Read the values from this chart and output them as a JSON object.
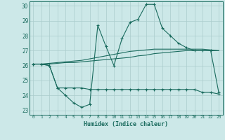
{
  "xlabel": "Humidex (Indice chaleur)",
  "background_color": "#cce8e8",
  "line_color": "#1a6b5e",
  "grid_color": "#aacccc",
  "xlim": [
    -0.5,
    23.5
  ],
  "ylim": [
    22.7,
    30.3
  ],
  "yticks": [
    23,
    24,
    25,
    26,
    27,
    28,
    29,
    30
  ],
  "xticks": [
    0,
    1,
    2,
    3,
    4,
    5,
    6,
    7,
    8,
    9,
    10,
    11,
    12,
    13,
    14,
    15,
    16,
    17,
    18,
    19,
    20,
    21,
    22,
    23
  ],
  "line1_x": [
    0,
    1,
    2,
    3,
    4,
    5,
    6,
    7,
    8,
    9,
    10,
    11,
    12,
    13,
    14,
    15,
    16,
    17,
    18,
    19,
    20,
    21,
    22,
    23
  ],
  "line1_y": [
    26.1,
    26.1,
    26.0,
    24.5,
    24.0,
    23.5,
    23.2,
    23.4,
    28.7,
    27.3,
    26.0,
    27.8,
    28.9,
    29.1,
    30.1,
    30.1,
    28.5,
    28.0,
    27.5,
    27.2,
    27.0,
    27.0,
    27.0,
    24.2
  ],
  "line2_x": [
    0,
    1,
    2,
    3,
    4,
    5,
    6,
    7,
    8,
    9,
    10,
    11,
    12,
    13,
    14,
    15,
    16,
    17,
    18,
    19,
    20,
    21,
    22,
    23
  ],
  "line2_y": [
    26.1,
    26.1,
    26.0,
    24.5,
    24.5,
    24.5,
    24.5,
    24.4,
    24.4,
    24.4,
    24.4,
    24.4,
    24.4,
    24.4,
    24.4,
    24.4,
    24.4,
    24.4,
    24.4,
    24.4,
    24.4,
    24.2,
    24.2,
    24.1
  ],
  "line3_x": [
    0,
    1,
    2,
    3,
    4,
    5,
    6,
    7,
    8,
    9,
    10,
    11,
    12,
    13,
    14,
    15,
    16,
    17,
    18,
    19,
    20,
    21,
    22,
    23
  ],
  "line3_y": [
    26.1,
    26.1,
    26.1,
    26.15,
    26.2,
    26.2,
    26.25,
    26.3,
    26.35,
    26.4,
    26.45,
    26.5,
    26.55,
    26.65,
    26.7,
    26.8,
    26.85,
    26.9,
    26.95,
    27.0,
    27.0,
    27.0,
    27.0,
    27.0
  ],
  "line4_x": [
    0,
    1,
    2,
    3,
    4,
    5,
    6,
    7,
    8,
    9,
    10,
    11,
    12,
    13,
    14,
    15,
    16,
    17,
    18,
    19,
    20,
    21,
    22,
    23
  ],
  "line4_y": [
    26.1,
    26.1,
    26.15,
    26.2,
    26.25,
    26.3,
    26.35,
    26.45,
    26.55,
    26.65,
    26.75,
    26.85,
    26.95,
    27.0,
    27.05,
    27.1,
    27.1,
    27.1,
    27.1,
    27.1,
    27.1,
    27.1,
    27.05,
    27.0
  ]
}
